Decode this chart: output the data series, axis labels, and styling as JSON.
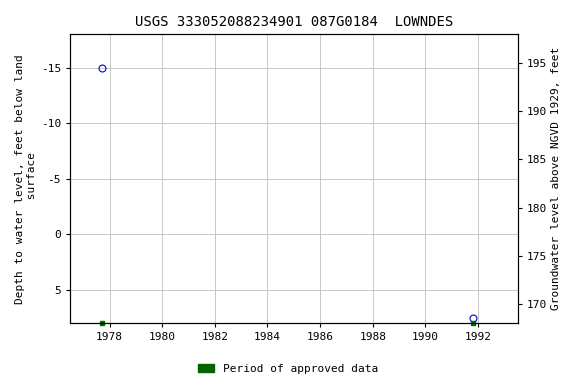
{
  "title": "USGS 333052088234901 087G0184  LOWNDES",
  "ylabel_left": "Depth to water level, feet below land\n surface",
  "ylabel_right": "Groundwater level above NGVD 1929, feet",
  "xlim": [
    1976.5,
    1993.5
  ],
  "ylim_left": [
    8,
    -18
  ],
  "ylim_right": [
    168,
    198
  ],
  "yticks_left": [
    5,
    0,
    -5,
    -10,
    -15
  ],
  "yticks_right": [
    170,
    175,
    180,
    185,
    190,
    195
  ],
  "xticks": [
    1978,
    1980,
    1982,
    1984,
    1986,
    1988,
    1990,
    1992
  ],
  "data_points": [
    {
      "x": 1977.7,
      "y_left": -15.0
    },
    {
      "x": 1991.8,
      "y_left": 7.5
    }
  ],
  "green_markers": [
    {
      "x": 1977.7
    },
    {
      "x": 1991.8
    }
  ],
  "bg_color": "#ffffff",
  "grid_color": "#c8c8c8",
  "title_fontsize": 10,
  "axis_label_fontsize": 8,
  "tick_fontsize": 8,
  "marker_color": "#0000cc",
  "marker_size": 5,
  "legend_label": "Period of approved data",
  "legend_color": "#006400"
}
